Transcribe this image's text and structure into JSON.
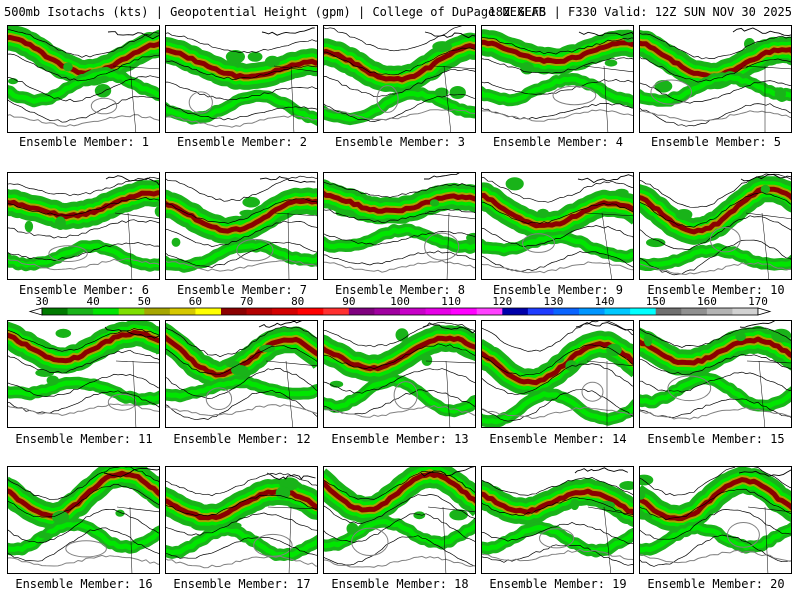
{
  "header": {
    "title_left": "500mb Isotachs (kts) | Geopotential Height (gpm) | College of DuPage NEXLAB",
    "title_right": "18Z GEFS | F330 Valid: 12Z SUN NOV 30 2025"
  },
  "colorbar": {
    "labels": [
      "30",
      "40",
      "50",
      "60",
      "70",
      "80",
      "90",
      "100",
      "110",
      "120",
      "130",
      "140",
      "150",
      "160",
      "170"
    ],
    "colors": [
      "#007a00",
      "#19b319",
      "#00e600",
      "#7fdf00",
      "#a6a600",
      "#d6c800",
      "#ffff00",
      "#8b0000",
      "#b40000",
      "#d40000",
      "#ff0000",
      "#ff3030",
      "#80007f",
      "#a000a0",
      "#c800c8",
      "#e600e6",
      "#ff00ff",
      "#ff40ff",
      "#0000aa",
      "#1e3cff",
      "#0a64ff",
      "#0096ff",
      "#00c8ff",
      "#00ffff",
      "#707070",
      "#909090",
      "#b4b4b4",
      "#d2d2d2"
    ]
  },
  "members": [
    {
      "caption": "Ensemble Member: 1"
    },
    {
      "caption": "Ensemble Member: 2"
    },
    {
      "caption": "Ensemble Member: 3"
    },
    {
      "caption": "Ensemble Member: 4"
    },
    {
      "caption": "Ensemble Member: 5"
    },
    {
      "caption": "Ensemble Member: 6"
    },
    {
      "caption": "Ensemble Member: 7"
    },
    {
      "caption": "Ensemble Member: 8"
    },
    {
      "caption": "Ensemble Member: 9"
    },
    {
      "caption": "Ensemble Member: 10"
    },
    {
      "caption": "Ensemble Member: 11"
    },
    {
      "caption": "Ensemble Member: 12"
    },
    {
      "caption": "Ensemble Member: 13"
    },
    {
      "caption": "Ensemble Member: 14"
    },
    {
      "caption": "Ensemble Member: 15"
    },
    {
      "caption": "Ensemble Member: 16"
    },
    {
      "caption": "Ensemble Member: 17"
    },
    {
      "caption": "Ensemble Member: 18"
    },
    {
      "caption": "Ensemble Member: 19"
    },
    {
      "caption": "Ensemble Member: 20"
    }
  ]
}
